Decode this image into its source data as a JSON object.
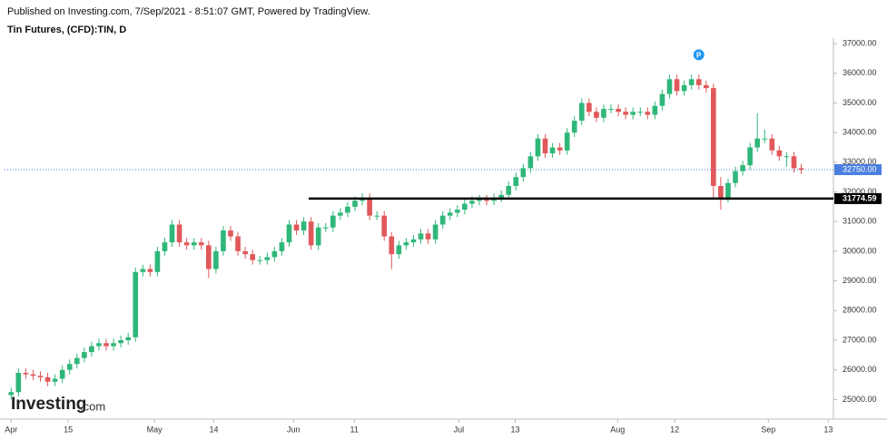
{
  "header": {
    "published": "Published on Investing.com, 7/Sep/2021 - 8:51:07 GMT, Powered by TradingView.",
    "symbol": "Tin Futures, (CFD):TIN, D"
  },
  "watermark": {
    "brand": "Investing",
    "domain": ".com"
  },
  "chart_data": {
    "type": "candlestick",
    "up_color": "#2fb77a",
    "down_color": "#e0585a",
    "xlim": [
      -0.9,
      112.4
    ],
    "xticks": [
      {
        "value": 0,
        "label": "Apr"
      },
      {
        "value": 7.8,
        "label": "15"
      },
      {
        "value": 19.6,
        "label": "May"
      },
      {
        "value": 27.7,
        "label": "14"
      },
      {
        "value": 38.6,
        "label": "Jun"
      },
      {
        "value": 46.9,
        "label": "11"
      },
      {
        "value": 61.2,
        "label": "Jul"
      },
      {
        "value": 68.9,
        "label": "13"
      },
      {
        "value": 82.9,
        "label": "Aug"
      },
      {
        "value": 90.7,
        "label": "12"
      },
      {
        "value": 103.5,
        "label": "Sep"
      },
      {
        "value": 111.7,
        "label": "13"
      }
    ],
    "ylim": [
      24400,
      37400
    ],
    "yticks": [
      {
        "value": 25000,
        "label": "25000.00"
      },
      {
        "value": 26000,
        "label": "26000.00"
      },
      {
        "value": 27000,
        "label": "27000.00"
      },
      {
        "value": 28000,
        "label": "28000.00"
      },
      {
        "value": 29000,
        "label": "29000.00"
      },
      {
        "value": 30000,
        "label": "30000.00"
      },
      {
        "value": 31000,
        "label": "31000.00"
      },
      {
        "value": 32000,
        "label": "32000.00"
      },
      {
        "value": 33000,
        "label": "33000.00"
      },
      {
        "value": 34000,
        "label": "34000.00"
      },
      {
        "value": 35000,
        "label": "35000.00"
      },
      {
        "value": 36000,
        "label": "36000.00"
      },
      {
        "value": 37000,
        "label": "37000.00"
      }
    ],
    "last_price": {
      "value": 32750,
      "label": "32750.00",
      "color": "#4a7fe0"
    },
    "support_line": {
      "value": 31774.59,
      "label": "31774.59",
      "color": "#000000"
    },
    "marker": {
      "index": 94,
      "label": "P",
      "color": "#2196f3"
    },
    "open": [
      25150,
      25250,
      25900,
      25850,
      25800,
      25750,
      25600,
      25700,
      26000,
      26200,
      26400,
      26600,
      26800,
      26900,
      26800,
      26900,
      27000,
      27100,
      29300,
      29400,
      29300,
      30000,
      30300,
      30900,
      30300,
      30200,
      30300,
      30200,
      29400,
      30000,
      30700,
      30500,
      30000,
      29900,
      29700,
      29700,
      29800,
      30000,
      30300,
      30900,
      30700,
      31000,
      30200,
      30800,
      30800,
      31200,
      31300,
      31500,
      31700,
      31800,
      31200,
      31200,
      30500,
      29900,
      30200,
      30300,
      30400,
      30600,
      30400,
      30900,
      31200,
      31300,
      31400,
      31600,
      31700,
      31750,
      31700,
      31800,
      31900,
      32200,
      32500,
      32800,
      33200,
      33800,
      33300,
      33500,
      33400,
      34000,
      34400,
      35000,
      34700,
      34500,
      34800,
      34800,
      34700,
      34600,
      34700,
      34700,
      34600,
      34900,
      35300,
      35800,
      35400,
      35600,
      35800,
      35600,
      35500,
      32200,
      31800,
      32300,
      32700,
      32900,
      33500,
      33800,
      33800,
      33400,
      33200,
      33200,
      32800
    ],
    "high": [
      25400,
      26050,
      26050,
      26000,
      25950,
      25900,
      25850,
      26150,
      26350,
      26550,
      26750,
      26950,
      27050,
      27050,
      27050,
      27150,
      27250,
      29450,
      29550,
      29550,
      30150,
      30450,
      31050,
      31050,
      30450,
      30450,
      30450,
      30350,
      30150,
      30850,
      30850,
      30650,
      30150,
      30050,
      29850,
      29950,
      30150,
      30450,
      31050,
      31050,
      31150,
      31150,
      30950,
      30950,
      31350,
      31450,
      31650,
      31850,
      31950,
      31950,
      31350,
      31350,
      30650,
      30350,
      30450,
      30550,
      30750,
      30750,
      31050,
      31350,
      31450,
      31550,
      31750,
      31850,
      31900,
      31900,
      31950,
      32050,
      32350,
      32650,
      32950,
      33350,
      33950,
      33950,
      33650,
      33650,
      34150,
      34550,
      35150,
      35150,
      34850,
      34950,
      34950,
      34950,
      34850,
      34850,
      34850,
      34850,
      35050,
      35450,
      35950,
      35950,
      35750,
      35950,
      35950,
      35750,
      35650,
      32500,
      32450,
      32850,
      33050,
      33650,
      34650,
      34100,
      33950,
      33550,
      33350,
      33350,
      32950
    ],
    "low": [
      25000,
      25100,
      25700,
      25650,
      25600,
      25450,
      25450,
      25550,
      25850,
      26050,
      26250,
      26450,
      26650,
      26650,
      26650,
      26750,
      26850,
      26950,
      29150,
      29150,
      29150,
      29850,
      30150,
      30150,
      30050,
      30050,
      30050,
      29100,
      29250,
      29850,
      30350,
      29850,
      29750,
      29550,
      29550,
      29550,
      29650,
      29850,
      30150,
      30550,
      30550,
      30050,
      30050,
      30650,
      30650,
      31050,
      31150,
      31350,
      31550,
      31050,
      31050,
      30350,
      29400,
      29750,
      30050,
      30150,
      30250,
      30250,
      30250,
      30750,
      31050,
      31150,
      31250,
      31450,
      31550,
      31550,
      31550,
      31650,
      31750,
      32050,
      32350,
      32650,
      33050,
      33150,
      33150,
      33250,
      33250,
      33850,
      34250,
      34550,
      34350,
      34350,
      34650,
      34550,
      34450,
      34450,
      34550,
      34450,
      34450,
      34750,
      35150,
      35250,
      35250,
      35450,
      35450,
      35350,
      31800,
      31400,
      31650,
      32150,
      32550,
      32750,
      33350,
      33650,
      33250,
      33050,
      32850,
      32650,
      32600
    ],
    "close": [
      25250,
      25900,
      25850,
      25800,
      25750,
      25600,
      25700,
      26000,
      26200,
      26400,
      26600,
      26800,
      26900,
      26800,
      26900,
      27000,
      27100,
      29300,
      29400,
      29300,
      30000,
      30300,
      30900,
      30300,
      30200,
      30300,
      30200,
      29400,
      30000,
      30700,
      30500,
      30000,
      29900,
      29700,
      29700,
      29800,
      30000,
      30300,
      30900,
      30700,
      31000,
      30200,
      30800,
      30800,
      31200,
      31300,
      31500,
      31700,
      31800,
      31200,
      31200,
      30500,
      29900,
      30200,
      30300,
      30400,
      30600,
      30400,
      30900,
      31200,
      31300,
      31400,
      31600,
      31700,
      31750,
      31700,
      31800,
      31900,
      32200,
      32500,
      32800,
      33200,
      33800,
      33300,
      33500,
      33400,
      34000,
      34400,
      35000,
      34700,
      34500,
      34800,
      34800,
      34700,
      34600,
      34700,
      34700,
      34600,
      34900,
      35300,
      35800,
      35400,
      35600,
      35800,
      35600,
      35500,
      32200,
      31800,
      32300,
      32700,
      32900,
      33500,
      33800,
      33800,
      33400,
      33200,
      33200,
      32800,
      32750
    ]
  }
}
